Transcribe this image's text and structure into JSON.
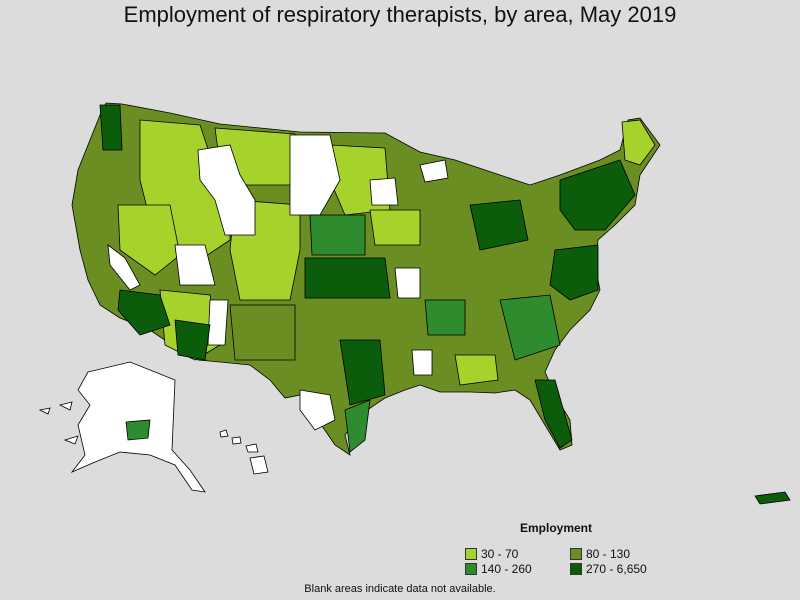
{
  "title": "Employment of respiratory therapists, by area, May 2019",
  "legend": {
    "title": "Employment",
    "items": [
      {
        "label": "30 - 70",
        "color": "#a6d22c"
      },
      {
        "label": "80 - 130",
        "color": "#6b8e23"
      },
      {
        "label": "140 - 260",
        "color": "#2e8b2e"
      },
      {
        "label": "270 - 6,650",
        "color": "#0b5d0b"
      }
    ]
  },
  "footnote": "Blank areas indicate data not available.",
  "colors": {
    "background": "#dcdcdc",
    "no_data": "#ffffff",
    "border": "#000000"
  }
}
